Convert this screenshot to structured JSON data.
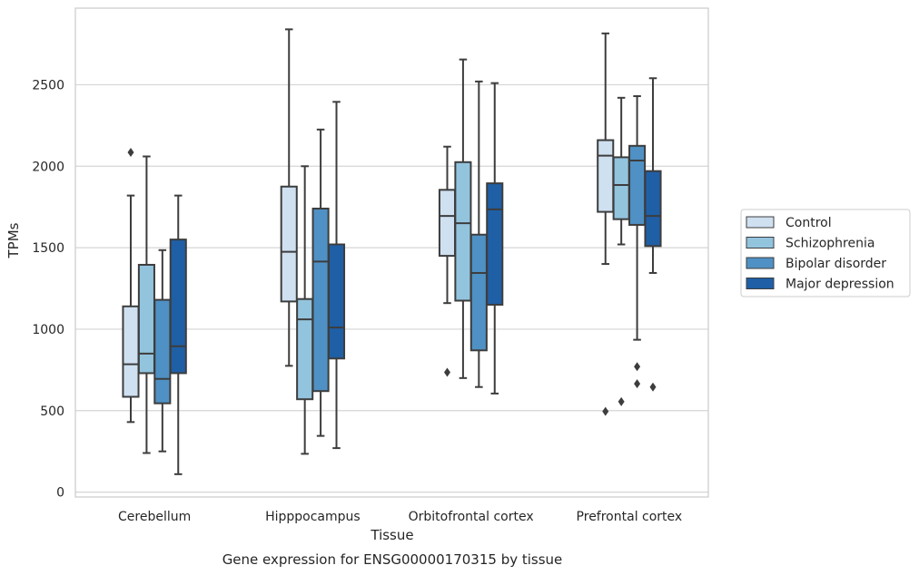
{
  "chart_data": {
    "type": "boxplot",
    "title": "",
    "caption": "Gene expression for ENSG00000170315 by tissue",
    "xlabel": "Tissue",
    "ylabel": "TPMs",
    "ylim": [
      -30,
      2970
    ],
    "yticks": [
      0,
      500,
      1000,
      1500,
      2000,
      2500
    ],
    "grid": "horizontal",
    "legend_position": "right",
    "categories": [
      "Cerebellum",
      "Hipppocampus",
      "Orbitofrontal cortex",
      "Prefrontal cortex"
    ],
    "series": [
      {
        "name": "Control",
        "color": "#cfe0f1",
        "boxes": [
          {
            "whisker_low": 430,
            "q1": 585,
            "median": 785,
            "q3": 1140,
            "whisker_high": 1820,
            "outliers": [
              2085
            ]
          },
          {
            "whisker_low": 775,
            "q1": 1170,
            "median": 1475,
            "q3": 1875,
            "whisker_high": 2840,
            "outliers": []
          },
          {
            "whisker_low": 1160,
            "q1": 1450,
            "median": 1695,
            "q3": 1855,
            "whisker_high": 2120,
            "outliers": [
              735
            ]
          },
          {
            "whisker_low": 1400,
            "q1": 1720,
            "median": 2065,
            "q3": 2160,
            "whisker_high": 2815,
            "outliers": [
              495
            ]
          }
        ]
      },
      {
        "name": "Schizophrenia",
        "color": "#93c4de",
        "boxes": [
          {
            "whisker_low": 240,
            "q1": 730,
            "median": 850,
            "q3": 1395,
            "whisker_high": 2060,
            "outliers": []
          },
          {
            "whisker_low": 235,
            "q1": 570,
            "median": 1060,
            "q3": 1185,
            "whisker_high": 2000,
            "outliers": []
          },
          {
            "whisker_low": 700,
            "q1": 1175,
            "median": 1650,
            "q3": 2025,
            "whisker_high": 2655,
            "outliers": []
          },
          {
            "whisker_low": 1520,
            "q1": 1675,
            "median": 1885,
            "q3": 2055,
            "whisker_high": 2420,
            "outliers": [
              555
            ]
          }
        ]
      },
      {
        "name": "Bipolar disorder",
        "color": "#4f91c4",
        "boxes": [
          {
            "whisker_low": 250,
            "q1": 545,
            "median": 695,
            "q3": 1180,
            "whisker_high": 1485,
            "outliers": []
          },
          {
            "whisker_low": 345,
            "q1": 620,
            "median": 1415,
            "q3": 1740,
            "whisker_high": 2225,
            "outliers": []
          },
          {
            "whisker_low": 645,
            "q1": 870,
            "median": 1345,
            "q3": 1580,
            "whisker_high": 2520,
            "outliers": []
          },
          {
            "whisker_low": 935,
            "q1": 1640,
            "median": 2035,
            "q3": 2125,
            "whisker_high": 2430,
            "outliers": [
              770,
              665
            ]
          }
        ]
      },
      {
        "name": "Major depression",
        "color": "#1f5fa6",
        "boxes": [
          {
            "whisker_low": 110,
            "q1": 730,
            "median": 895,
            "q3": 1550,
            "whisker_high": 1820,
            "outliers": []
          },
          {
            "whisker_low": 270,
            "q1": 820,
            "median": 1010,
            "q3": 1520,
            "whisker_high": 2395,
            "outliers": []
          },
          {
            "whisker_low": 605,
            "q1": 1150,
            "median": 1735,
            "q3": 1895,
            "whisker_high": 2510,
            "outliers": []
          },
          {
            "whisker_low": 1345,
            "q1": 1510,
            "median": 1695,
            "q3": 1970,
            "whisker_high": 2540,
            "outliers": [
              645
            ]
          }
        ]
      }
    ]
  }
}
